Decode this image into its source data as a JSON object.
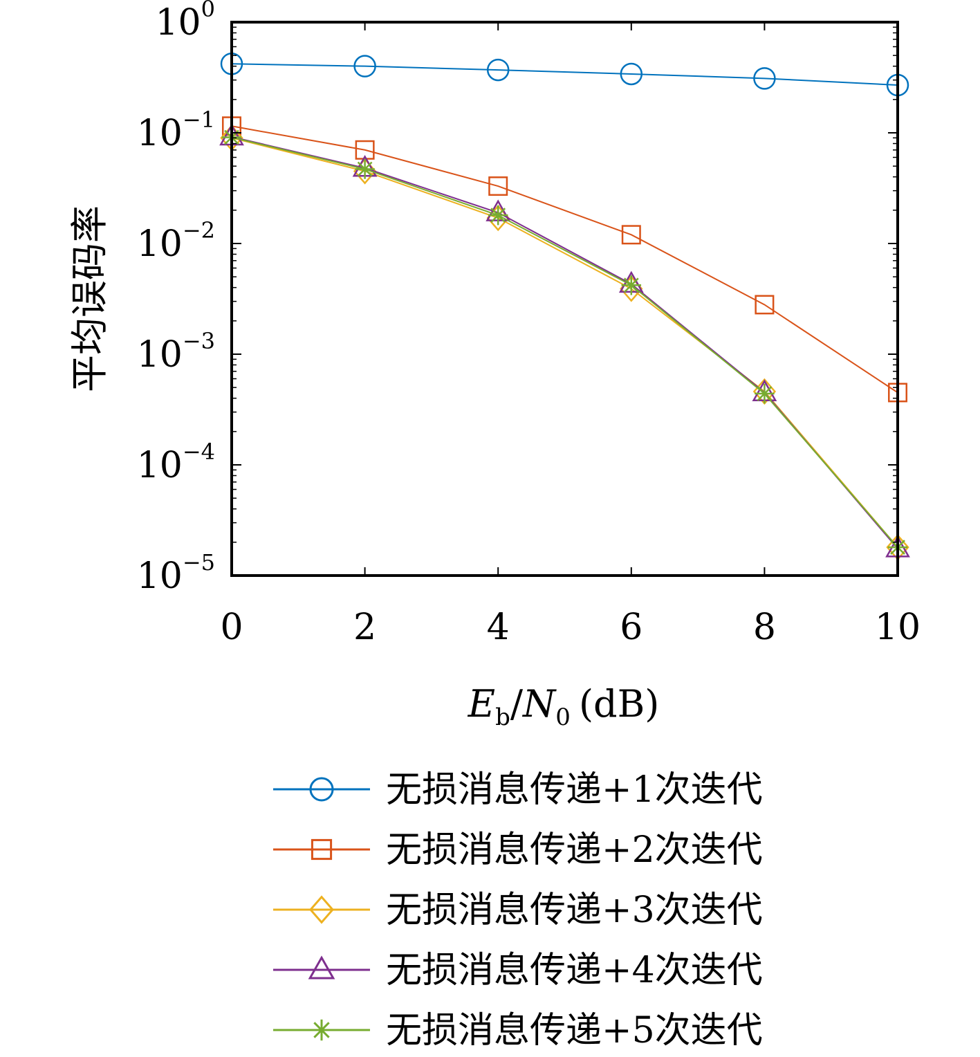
{
  "chart_data": {
    "type": "line",
    "xlabel": "E_b/N_0 (dB)",
    "xlabel_parts": {
      "E": "E",
      "b": "b",
      "sep": "/",
      "N": "N",
      "zero": "0",
      "unit": "(dB)"
    },
    "ylabel": "平均误码率",
    "x_scale": "linear",
    "y_scale": "log",
    "xlim": [
      0,
      10
    ],
    "ylim": [
      1e-05,
      1
    ],
    "x_ticks": [
      "0",
      "2",
      "4",
      "6",
      "8",
      "10"
    ],
    "y_ticks": [
      {
        "value": 1,
        "base": "10",
        "exp": "0"
      },
      {
        "value": 0.1,
        "base": "10",
        "exp": "−1"
      },
      {
        "value": 0.01,
        "base": "10",
        "exp": "−2"
      },
      {
        "value": 0.001,
        "base": "10",
        "exp": "−3"
      },
      {
        "value": 0.0001,
        "base": "10",
        "exp": "−4"
      },
      {
        "value": 1e-05,
        "base": "10",
        "exp": "−5"
      }
    ],
    "grid": false,
    "legend_position": "below",
    "x": [
      0,
      2,
      4,
      6,
      8,
      10
    ],
    "series": [
      {
        "name": "无损消息传递+1次迭代",
        "color": "#0072BD",
        "marker": "circle",
        "values": [
          0.42,
          0.4,
          0.37,
          0.34,
          0.31,
          0.27
        ]
      },
      {
        "name": "无损消息传递+2次迭代",
        "color": "#D95319",
        "marker": "square",
        "values": [
          0.115,
          0.07,
          0.033,
          0.012,
          0.0028,
          0.00045
        ]
      },
      {
        "name": "无损消息传递+3次迭代",
        "color": "#EDB120",
        "marker": "diamond",
        "values": [
          0.09,
          0.045,
          0.017,
          0.0039,
          0.00046,
          1.8e-05
        ]
      },
      {
        "name": "无损消息传递+4次迭代",
        "color": "#7E2F8E",
        "marker": "triangle",
        "values": [
          0.092,
          0.048,
          0.019,
          0.0043,
          0.00045,
          1.75e-05
        ]
      },
      {
        "name": "无损消息传递+5次迭代",
        "color": "#77AC30",
        "marker": "star",
        "values": [
          0.091,
          0.047,
          0.018,
          0.0042,
          0.00044,
          1.8e-05
        ]
      }
    ]
  }
}
